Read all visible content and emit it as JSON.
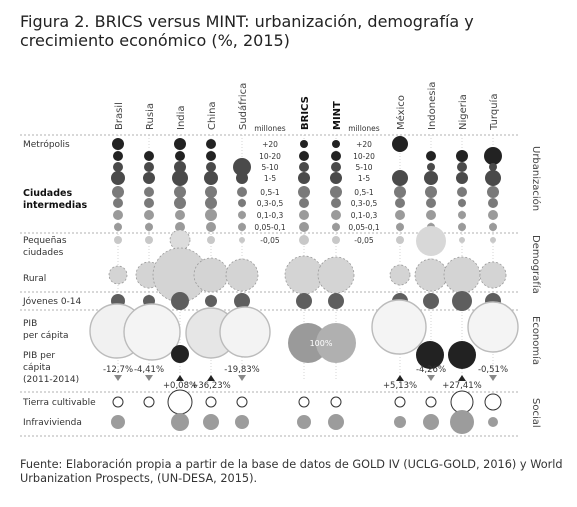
{
  "title": "Figura 2. BRICS versus MINT: urbanización, demografía y crecimiento económico (%, 2015)",
  "source": "Fuente: Elaboración propia a partir de la base de datos de GOLD IV (UCLG-GOLD, 2016) y World Urbanization Prospects, (UN-DESA, 2015).",
  "chart_data": {
    "type": "bubble-matrix",
    "countries": [
      "Brasil",
      "Rusia",
      "India",
      "China",
      "Sudáfrica",
      "BRICS",
      "MINT",
      "México",
      "Indonesia",
      "Nigeria",
      "Turquía"
    ],
    "bold_countries": [
      "BRICS",
      "MINT"
    ],
    "row_labels": {
      "metropolis": "Metrópolis",
      "intermediate_cities": "Ciudades intermedias",
      "small_cities": "Pequeñas ciudades",
      "rural": "Rural",
      "youth": "Jóvenes 0-14",
      "gdp_per_capita": "PIB per cápita",
      "gdp_growth": "PIB per cápita (2011-2014)",
      "arable_land": "Tierra cultivable",
      "slums": "Infravivienda"
    },
    "city_size_unit": "millones",
    "city_size_bands": [
      "+20",
      "10-20",
      "5-10",
      "1-5",
      "0,5-1",
      "0,3-0,5",
      "0,1-0,3",
      "0,05-0,1",
      "-0,05"
    ],
    "group_labels": [
      "Urbanización",
      "Demografía",
      "Economía",
      "Social"
    ],
    "gdp_reference_label": "100%",
    "gdp_growth": [
      {
        "country": "Brasil",
        "label": "-12,7%",
        "value": -12.7
      },
      {
        "country": "Rusia",
        "label": "-4,41%",
        "value": -4.41
      },
      {
        "country": "India",
        "label": "+0,08%",
        "value": 0.08
      },
      {
        "country": "China",
        "label": "+36,23%",
        "value": 36.23
      },
      {
        "country": "Sudáfrica",
        "label": "-19,83%",
        "value": -19.83
      },
      {
        "country": "México",
        "label": "+5,13%",
        "value": 5.13
      },
      {
        "country": "Indonesia",
        "label": "-4,26%",
        "value": -4.26
      },
      {
        "country": "Nigeria",
        "label": "+27,41%",
        "value": 27.41
      },
      {
        "country": "Turquía",
        "label": "-0,51%",
        "value": -0.51
      }
    ],
    "colors": {
      "dark": "#222222",
      "mid": "#6a6a6a",
      "light": "#9a9a9a",
      "pale": "#c8c8c8",
      "guide": "#999999"
    }
  }
}
